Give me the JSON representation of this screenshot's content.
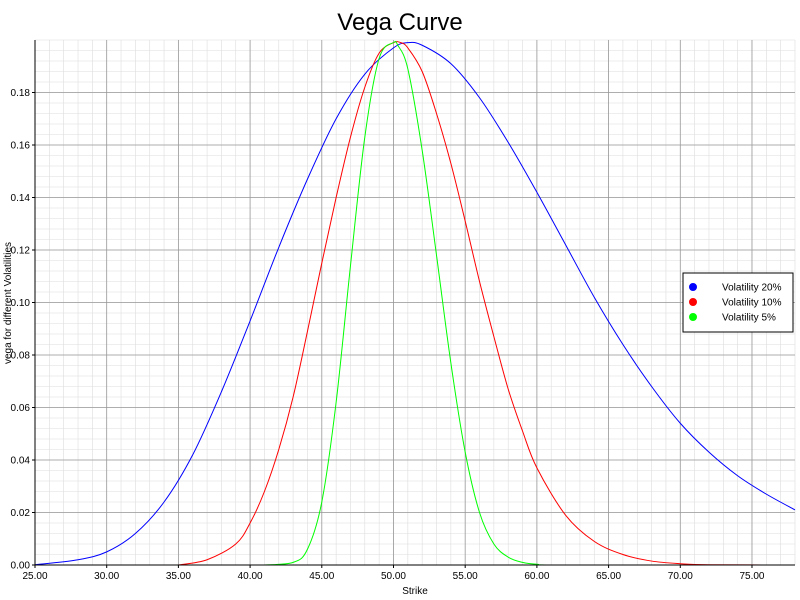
{
  "chart_data": {
    "type": "line",
    "title": "Vega Curve",
    "xlabel": "Strike",
    "ylabel": "vega for different Volatilities",
    "xlim": [
      25,
      78
    ],
    "ylim": [
      0,
      0.2
    ],
    "x_ticks": [
      "25.00",
      "30.00",
      "35.00",
      "40.00",
      "45.00",
      "50.00",
      "55.00",
      "60.00",
      "65.00",
      "70.00",
      "75.00"
    ],
    "y_ticks": [
      "0.00",
      "0.02",
      "0.04",
      "0.06",
      "0.08",
      "0.10",
      "0.12",
      "0.14",
      "0.16",
      "0.18"
    ],
    "grid": true,
    "legend_position": "right",
    "series": [
      {
        "name": "Volatility 20%",
        "color": "#0000ff",
        "x": [
          25,
          28,
          30,
          32,
          34,
          36,
          38,
          40,
          42,
          44,
          46,
          48,
          50,
          51,
          52,
          54,
          56,
          58,
          60,
          62,
          64,
          66,
          68,
          70,
          72,
          74,
          76,
          78
        ],
        "values": [
          0.0001,
          0.002,
          0.005,
          0.012,
          0.024,
          0.042,
          0.066,
          0.093,
          0.121,
          0.147,
          0.17,
          0.187,
          0.197,
          0.199,
          0.198,
          0.191,
          0.178,
          0.161,
          0.142,
          0.122,
          0.102,
          0.084,
          0.068,
          0.054,
          0.043,
          0.034,
          0.027,
          0.021
        ]
      },
      {
        "name": "Volatility 10%",
        "color": "#ff0000",
        "x": [
          35,
          37,
          39,
          40,
          41,
          42,
          43,
          44,
          45,
          46,
          47,
          48,
          49,
          50,
          50.5,
          51,
          52,
          53,
          54,
          55,
          56,
          57,
          58,
          59,
          60,
          62,
          64,
          66,
          68,
          70,
          72,
          78
        ],
        "values": [
          0.0,
          0.002,
          0.008,
          0.016,
          0.028,
          0.044,
          0.064,
          0.089,
          0.115,
          0.14,
          0.163,
          0.182,
          0.195,
          0.199,
          0.199,
          0.197,
          0.188,
          0.172,
          0.153,
          0.131,
          0.108,
          0.087,
          0.067,
          0.051,
          0.037,
          0.019,
          0.009,
          0.004,
          0.0015,
          0.0005,
          0.0001,
          0.0
        ]
      },
      {
        "name": "Volatility 5%",
        "color": "#00ff00",
        "x": [
          41,
          43,
          44,
          45,
          46,
          47,
          48,
          49,
          50,
          50.3,
          51,
          52,
          53,
          54,
          55,
          56,
          57,
          58,
          59,
          60,
          62,
          78
        ],
        "values": [
          0.0,
          0.001,
          0.006,
          0.024,
          0.062,
          0.114,
          0.163,
          0.193,
          0.199,
          0.198,
          0.189,
          0.158,
          0.118,
          0.077,
          0.043,
          0.02,
          0.008,
          0.003,
          0.001,
          0.0003,
          0.0,
          0.0
        ]
      }
    ]
  }
}
